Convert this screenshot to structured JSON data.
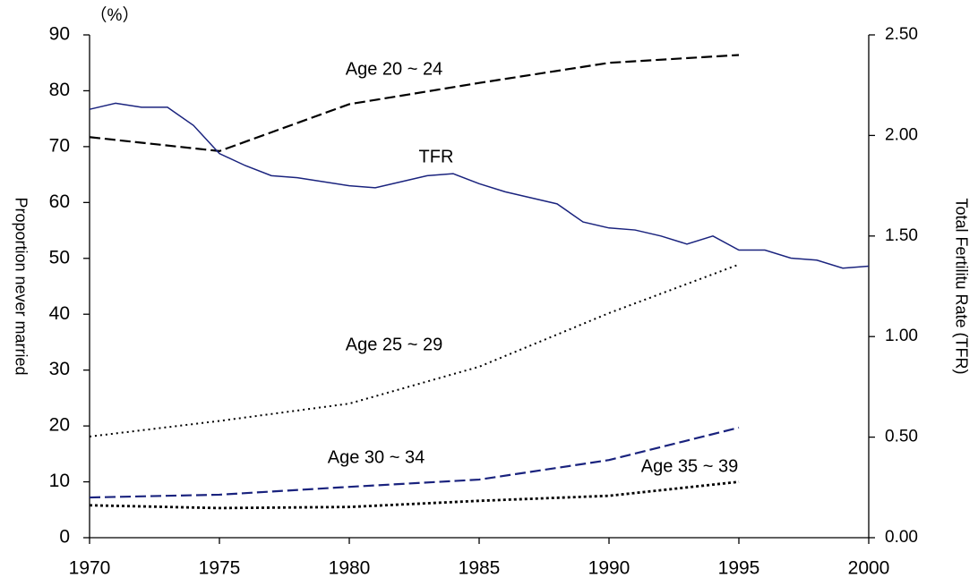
{
  "chart_data": {
    "type": "line",
    "unit_label": "（%）",
    "ylabel": "Proportion never married",
    "y2label": "Total Fertilitu Rate (TFR)",
    "xlim": [
      1970,
      2000
    ],
    "xticks": [
      1970,
      1975,
      1980,
      1985,
      1990,
      1995,
      2000
    ],
    "ylim": [
      0,
      90
    ],
    "yticks": [
      0,
      10,
      20,
      30,
      40,
      50,
      60,
      70,
      80,
      90
    ],
    "y2lim": [
      0,
      2.5
    ],
    "y2ticks": [
      {
        "value": 0,
        "label": "0.00"
      },
      {
        "value": 0.5,
        "label": "0.50"
      },
      {
        "value": 1,
        "label": "1.00"
      },
      {
        "value": 1.5,
        "label": "1.50"
      },
      {
        "value": 2,
        "label": "2.00"
      },
      {
        "value": 2.5,
        "label": "2.50"
      }
    ],
    "annotations": [
      "Age  20 ~ 24",
      "TFR",
      "Age  25 ~ 29",
      "Age  30 ~ 34",
      "Age  35 ~ 39"
    ],
    "series": [
      {
        "color": "#000000",
        "dash": "12,5",
        "width": 2.2,
        "x": [
          1970,
          1975,
          1980,
          1985,
          1990,
          1995
        ],
        "values": [
          71.7,
          69.2,
          77.6,
          81.4,
          85.0,
          86.4
        ]
      },
      {
        "color": "#000000",
        "dash": "2,4",
        "width": 2,
        "x": [
          1970,
          1975,
          1980,
          1985,
          1990,
          1995
        ],
        "values": [
          18.1,
          20.9,
          24.0,
          30.6,
          40.2,
          48.9
        ]
      },
      {
        "color": "#1a237e",
        "dash": "12,5",
        "width": 2.2,
        "x": [
          1970,
          1975,
          1980,
          1985,
          1990,
          1995
        ],
        "values": [
          7.2,
          7.7,
          9.1,
          10.4,
          13.9,
          19.7
        ]
      },
      {
        "color": "#000000",
        "dash": "3,3",
        "width": 2.8,
        "x": [
          1970,
          1975,
          1980,
          1985,
          1990,
          1995
        ],
        "values": [
          5.8,
          5.3,
          5.5,
          6.6,
          7.5,
          10.0
        ]
      },
      {
        "color": "#1a237e",
        "dash": "none",
        "width": 1.5,
        "axis": "y2",
        "x": [
          1970,
          1971,
          1972,
          1973,
          1974,
          1975,
          1976,
          1977,
          1978,
          1979,
          1980,
          1981,
          1982,
          1983,
          1984,
          1985,
          1986,
          1987,
          1988,
          1989,
          1990,
          1991,
          1992,
          1993,
          1994,
          1995,
          1996,
          1997,
          1998,
          1999,
          2000
        ],
        "values": [
          2.13,
          2.16,
          2.14,
          2.14,
          2.05,
          1.91,
          1.85,
          1.8,
          1.79,
          1.77,
          1.75,
          1.74,
          1.77,
          1.8,
          1.81,
          1.76,
          1.72,
          1.69,
          1.66,
          1.57,
          1.54,
          1.53,
          1.5,
          1.46,
          1.5,
          1.43,
          1.43,
          1.39,
          1.38,
          1.34,
          1.35
        ]
      }
    ]
  }
}
